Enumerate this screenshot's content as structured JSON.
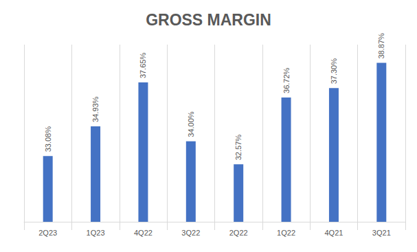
{
  "chart_data": {
    "type": "bar",
    "title": "GROSS MARGIN",
    "categories": [
      "2Q23",
      "1Q23",
      "4Q22",
      "3Q22",
      "2Q22",
      "1Q22",
      "4Q21",
      "3Q21"
    ],
    "values": [
      33.08,
      34.93,
      37.65,
      34.0,
      32.57,
      36.72,
      37.3,
      38.87
    ],
    "value_labels": [
      "33.08%",
      "34.93%",
      "37.65%",
      "34.00%",
      "32.57%",
      "36.72%",
      "37.30%",
      "38.87%"
    ],
    "color": "#4472c4",
    "ylim": [
      29,
      40
    ],
    "yticks": [
      29,
      40
    ],
    "grid": true,
    "data_labels": true,
    "tick_labels": "x"
  }
}
